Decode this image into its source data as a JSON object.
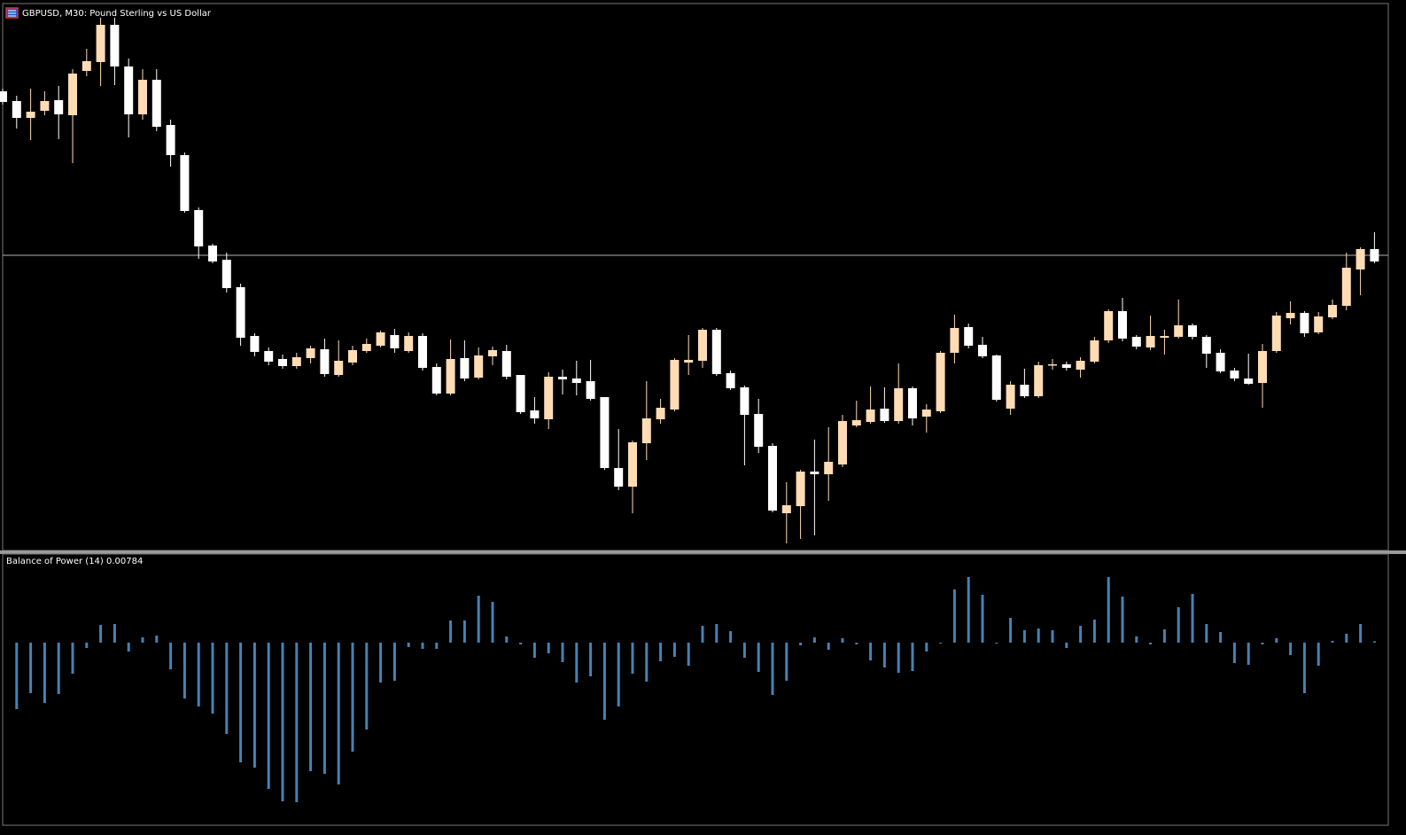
{
  "chart_data": [
    {
      "type": "candlestick",
      "title": "GBPUSD, M30:  Pound Sterling vs US Dollar",
      "up_color": "#ffdcb4",
      "down_color": "#ffffff",
      "ylim": [
        0,
        616
      ],
      "price_line": 332,
      "open": [
        517,
        506,
        487,
        495,
        507,
        490,
        540,
        550,
        592,
        545,
        491,
        530,
        479,
        445,
        383,
        343,
        327,
        296,
        241,
        224,
        215,
        207,
        216,
        226,
        197,
        211,
        224,
        230,
        242,
        224,
        241,
        206,
        176,
        216,
        194,
        218,
        224,
        197,
        157,
        147,
        195,
        193,
        190,
        172,
        92,
        71,
        120,
        147,
        158,
        211,
        213,
        248,
        199,
        183,
        153,
        117,
        41,
        49,
        88,
        85,
        96,
        140,
        144,
        159,
        145,
        182,
        150,
        156,
        222,
        251,
        231,
        219,
        159,
        186,
        173,
        209,
        209,
        203,
        212,
        236,
        269,
        240,
        228,
        239,
        240,
        253,
        240,
        222,
        202,
        193,
        188,
        224,
        261,
        267,
        245,
        262,
        275,
        316,
        339
      ],
      "high": [
        520,
        512,
        520,
        517,
        523,
        542,
        565,
        600,
        600,
        554,
        542,
        542,
        485,
        448,
        386,
        345,
        335,
        300,
        244,
        228,
        220,
        222,
        230,
        238,
        236,
        230,
        238,
        247,
        249,
        245,
        244,
        210,
        237,
        236,
        228,
        229,
        231,
        197,
        172,
        200,
        203,
        213,
        214,
        172,
        136,
        123,
        190,
        170,
        216,
        242,
        250,
        250,
        202,
        185,
        170,
        120,
        76,
        90,
        124,
        138,
        152,
        168,
        184,
        183,
        210,
        184,
        164,
        224,
        265,
        255,
        240,
        220,
        190,
        204,
        212,
        215,
        212,
        217,
        240,
        271,
        284,
        242,
        264,
        248,
        282,
        255,
        242,
        226,
        205,
        221,
        232,
        268,
        280,
        269,
        268,
        282,
        335,
        341,
        358
      ],
      "low": [
        502,
        475,
        462,
        490,
        463,
        436,
        534,
        523,
        524,
        465,
        485,
        472,
        432,
        380,
        328,
        323,
        290,
        230,
        218,
        208,
        204,
        204,
        210,
        195,
        195,
        208,
        222,
        228,
        222,
        222,
        202,
        174,
        174,
        190,
        192,
        208,
        192,
        153,
        142,
        136,
        175,
        174,
        168,
        90,
        67,
        41,
        101,
        142,
        156,
        197,
        205,
        196,
        180,
        95,
        109,
        42,
        7,
        12,
        16,
        55,
        93,
        138,
        142,
        143,
        142,
        140,
        132,
        154,
        210,
        227,
        216,
        167,
        152,
        171,
        171,
        203,
        202,
        194,
        210,
        233,
        235,
        226,
        225,
        220,
        238,
        237,
        205,
        199,
        190,
        186,
        160,
        222,
        254,
        240,
        243,
        260,
        270,
        287,
        323
      ],
      "close": [
        505,
        487,
        494,
        506,
        491,
        537,
        551,
        592,
        545,
        491,
        530,
        477,
        445,
        382,
        342,
        325,
        295,
        239,
        223,
        212,
        207,
        217,
        227,
        198,
        213,
        225,
        232,
        245,
        227,
        241,
        205,
        176,
        215,
        193,
        219,
        225,
        195,
        155,
        148,
        195,
        192,
        188,
        170,
        92,
        71,
        121,
        148,
        160,
        214,
        214,
        248,
        198,
        182,
        152,
        116,
        44,
        50,
        88,
        85,
        99,
        145,
        146,
        158,
        145,
        182,
        148,
        158,
        222,
        250,
        230,
        218,
        169,
        186,
        173,
        208,
        209,
        205,
        213,
        236,
        269,
        238,
        229,
        241,
        241,
        253,
        240,
        221,
        201,
        193,
        187,
        224,
        264,
        267,
        244,
        263,
        276,
        318,
        339,
        325
      ]
    },
    {
      "type": "bar",
      "title": "Balance of Power (14) 0.00784",
      "color": "#4682b4",
      "ylim": [
        -1.015,
        0.49
      ],
      "values": [
        null,
        -0.375,
        -0.285,
        -0.34,
        -0.29,
        -0.175,
        -0.03,
        0.1,
        0.105,
        -0.05,
        0.03,
        0.04,
        -0.15,
        -0.315,
        -0.36,
        -0.4,
        -0.515,
        -0.675,
        -0.705,
        -0.825,
        -0.895,
        -0.9,
        -0.725,
        -0.74,
        -0.8,
        -0.615,
        -0.49,
        -0.225,
        -0.215,
        -0.025,
        -0.035,
        -0.035,
        0.125,
        0.125,
        0.265,
        0.23,
        0.035,
        -0.01,
        -0.085,
        -0.06,
        -0.11,
        -0.225,
        -0.19,
        -0.435,
        -0.36,
        -0.175,
        -0.22,
        -0.105,
        -0.08,
        -0.13,
        0.095,
        0.105,
        0.065,
        -0.085,
        -0.165,
        -0.295,
        -0.215,
        -0.015,
        0.03,
        -0.04,
        0.025,
        -0.01,
        -0.1,
        -0.14,
        -0.17,
        -0.16,
        -0.05,
        0,
        0.3,
        0.37,
        0.27,
        0,
        0.14,
        0.07,
        0.08,
        0.07,
        -0.03,
        0.095,
        0.13,
        0.37,
        0.26,
        0.035,
        -0.01,
        0.075,
        0.2,
        0.275,
        0.105,
        0.06,
        -0.115,
        -0.125,
        -0.01,
        0.025,
        -0.07,
        -0.285,
        -0.13,
        0.01,
        0.05,
        0.105,
        0.00784
      ]
    }
  ]
}
